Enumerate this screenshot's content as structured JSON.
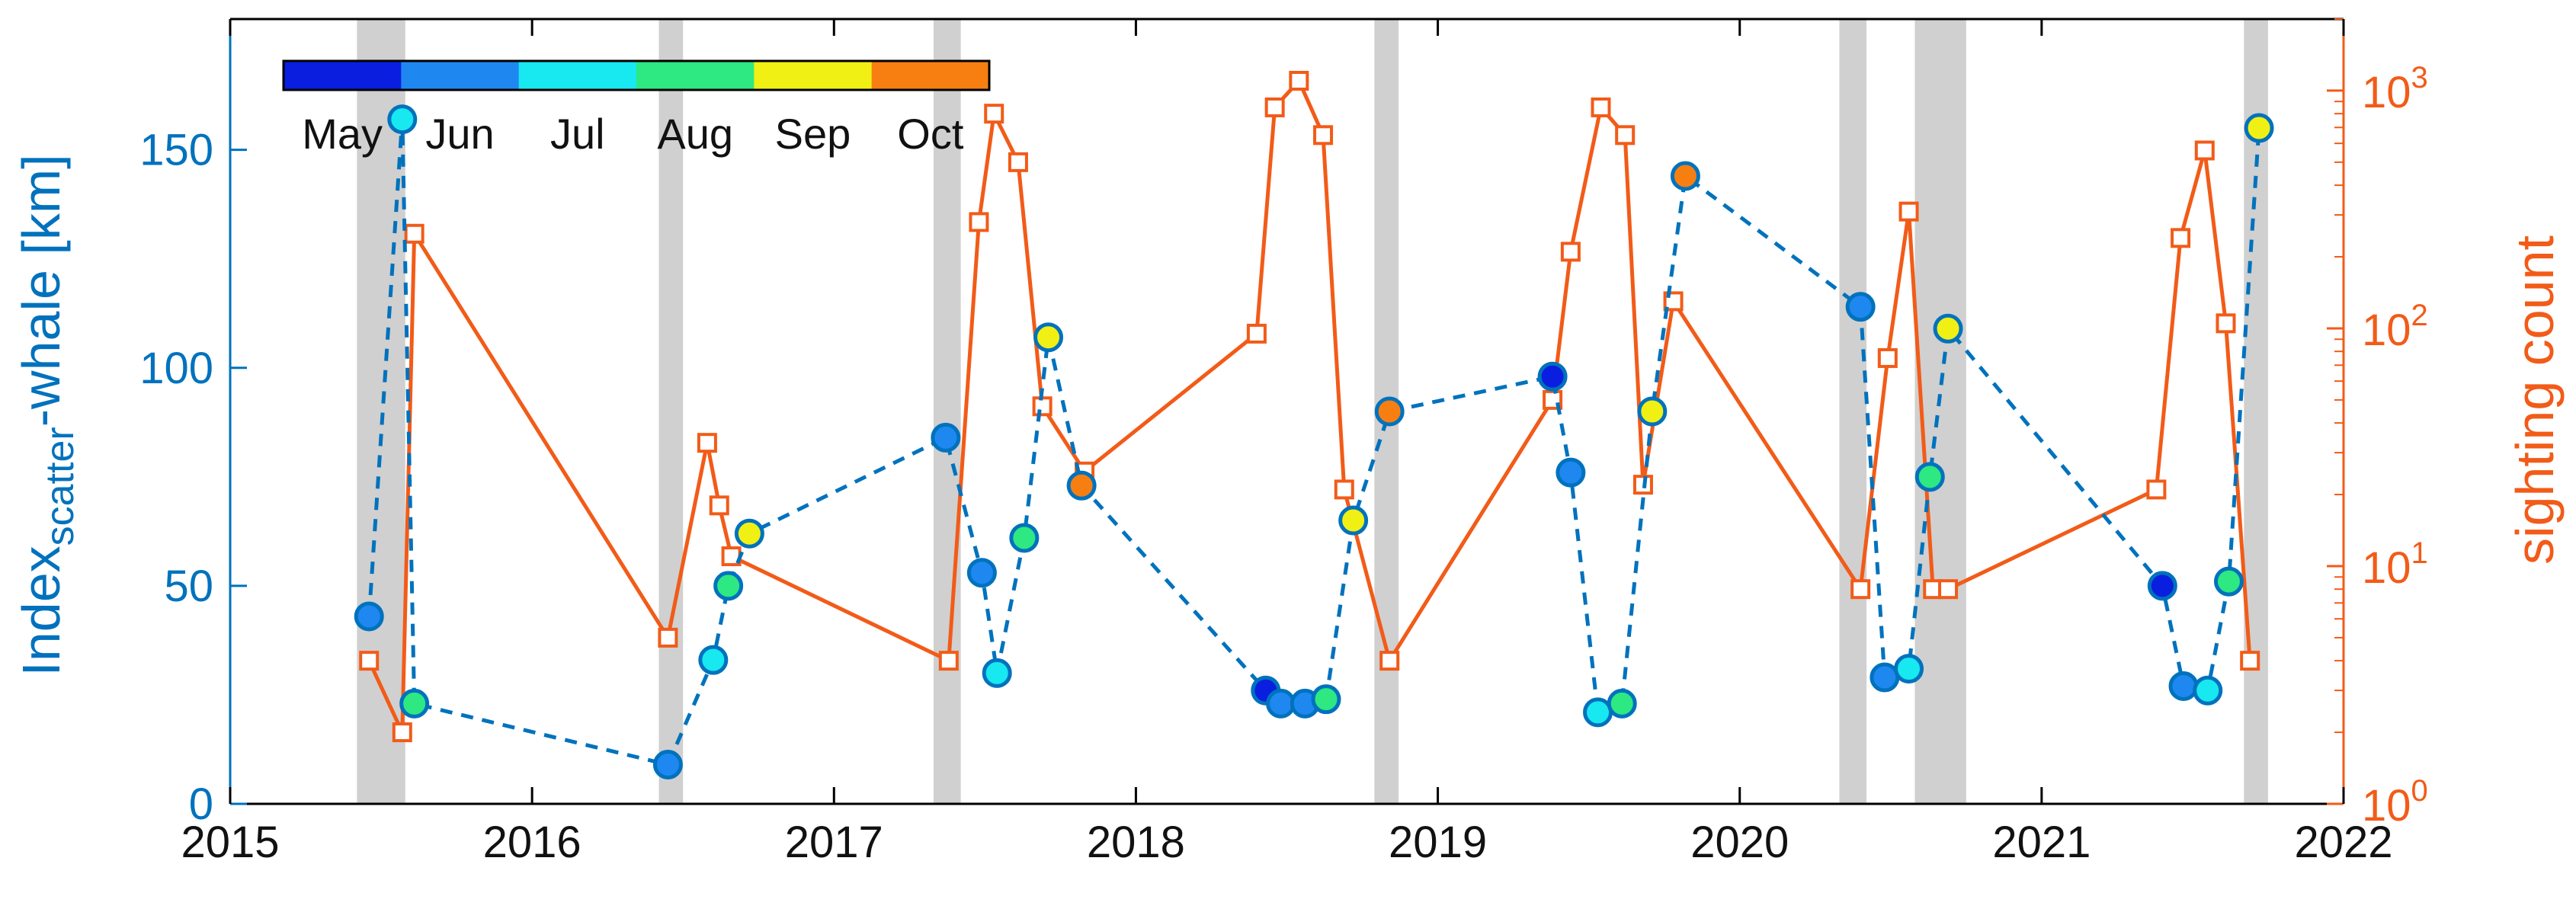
{
  "chart_data": {
    "type": "scatter",
    "colors": {
      "left_axis": "#0072BD",
      "right_axis": "#F25B18",
      "gap_band": "#d0d0d0",
      "axis_black": "#000000"
    },
    "x_axis": {
      "range": [
        2015,
        2022
      ],
      "ticks": [
        2015,
        2016,
        2017,
        2018,
        2019,
        2020,
        2021,
        2022
      ],
      "tick_labels": [
        "2015",
        "2016",
        "2017",
        "2018",
        "2019",
        "2020",
        "2021",
        "2022"
      ]
    },
    "left_axis": {
      "label_main": "Index",
      "label_sub": "scatter",
      "label_rest": "-whale [km]",
      "range": [
        0,
        180
      ],
      "ticks": [
        0,
        50,
        100,
        150
      ],
      "tick_labels": [
        "0",
        "50",
        "100",
        "150"
      ]
    },
    "right_axis": {
      "label": "sighting count",
      "scale": "log",
      "range": [
        1,
        2000
      ],
      "ticks": [
        1,
        10,
        100,
        1000
      ],
      "tick_base": "10",
      "tick_exponents": [
        "0",
        "1",
        "2",
        "3"
      ]
    },
    "colorbar": {
      "months": [
        "May",
        "Jun",
        "Jul",
        "Aug",
        "Sep",
        "Oct"
      ],
      "colors": [
        "#0a1ee0",
        "#1e88f0",
        "#18e8f0",
        "#2ee882",
        "#f0f014",
        "#f77f12"
      ]
    },
    "gray_periods": [
      [
        2015.42,
        2015.58
      ],
      [
        2016.42,
        2016.5
      ],
      [
        2017.33,
        2017.42
      ],
      [
        2018.79,
        2018.87
      ],
      [
        2020.33,
        2020.42
      ],
      [
        2020.58,
        2020.75
      ],
      [
        2021.67,
        2021.75
      ]
    ],
    "series": [
      {
        "name": "Index scatter-whale",
        "style": "dashed line with circles colored by month",
        "x": [
          2015.46,
          2015.57,
          2015.61,
          2016.45,
          2016.6,
          2016.65,
          2016.72,
          2017.37,
          2017.49,
          2017.54,
          2017.63,
          2017.71,
          2017.82,
          2018.43,
          2018.48,
          2018.56,
          2018.63,
          2018.72,
          2018.84,
          2019.38,
          2019.44,
          2019.53,
          2019.61,
          2019.71,
          2019.82,
          2020.4,
          2020.48,
          2020.56,
          2020.63,
          2020.69,
          2021.4,
          2021.47,
          2021.55,
          2021.62,
          2021.72
        ],
        "y": [
          43,
          157,
          23,
          9,
          33,
          50,
          62,
          84,
          53,
          30,
          61,
          107,
          73,
          26,
          23,
          23,
          24,
          65,
          90,
          98,
          76,
          21,
          23,
          90,
          144,
          114,
          29,
          31,
          75,
          109,
          50,
          27,
          26,
          51,
          155
        ],
        "month": [
          "Jun",
          "Jul",
          "Aug",
          "Jun",
          "Jul",
          "Aug",
          "Sep",
          "Jun",
          "Jun",
          "Jul",
          "Aug",
          "Sep",
          "Oct",
          "May",
          "Jun",
          "Jun",
          "Aug",
          "Sep",
          "Oct",
          "May",
          "Jun",
          "Jul",
          "Aug",
          "Sep",
          "Oct",
          "Jun",
          "Jun",
          "Jul",
          "Aug",
          "Sep",
          "May",
          "Jun",
          "Jul",
          "Aug",
          "Sep"
        ]
      },
      {
        "name": "sighting count",
        "style": "solid line with square markers, right log axis",
        "x": [
          2015.46,
          2015.57,
          2015.61,
          2016.45,
          2016.58,
          2016.62,
          2016.66,
          2017.38,
          2017.48,
          2017.53,
          2017.61,
          2017.69,
          2017.83,
          2018.4,
          2018.46,
          2018.54,
          2018.62,
          2018.69,
          2018.84,
          2019.38,
          2019.44,
          2019.54,
          2019.62,
          2019.68,
          2019.78,
          2020.4,
          2020.49,
          2020.56,
          2020.64,
          2020.69,
          2021.38,
          2021.46,
          2021.54,
          2021.61,
          2021.69
        ],
        "y": [
          4,
          2,
          250,
          5,
          33,
          18,
          11,
          4,
          280,
          800,
          500,
          47,
          25,
          95,
          850,
          1100,
          650,
          21,
          4,
          50,
          210,
          850,
          650,
          22,
          130,
          8,
          75,
          310,
          8,
          8,
          21,
          240,
          560,
          105,
          4
        ]
      }
    ]
  }
}
